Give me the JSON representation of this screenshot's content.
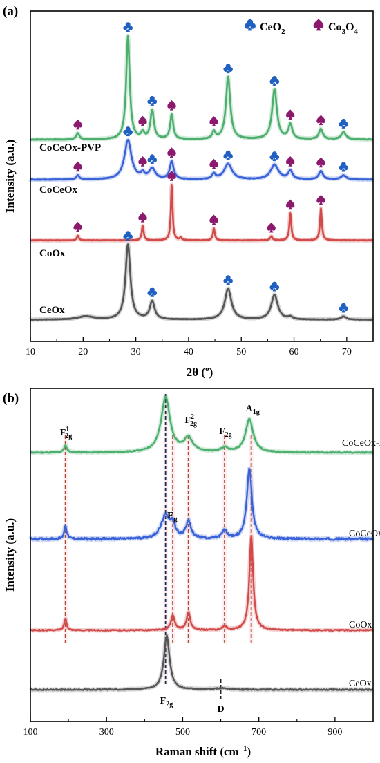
{
  "chart_data": [
    {
      "type": "line",
      "panel_label": "(a)",
      "xlabel": "2θ (°)",
      "xlabel_main": "2θ (",
      "xlabel_sup": "o",
      "xlabel_end": ")",
      "ylabel": "Intensity (a.u.)",
      "xlim": [
        10,
        75
      ],
      "xticks": [
        "10",
        "20",
        "30",
        "40",
        "50",
        "60",
        "70"
      ],
      "legend": [
        {
          "name": "CeO₂",
          "main": "CeO",
          "sub": "2",
          "color": "#2060c0",
          "marker": "club"
        },
        {
          "name": "Co₃O₄",
          "main": "Co",
          "sub1": "3",
          "mid": "O",
          "sub2": "4",
          "color": "#8b1a6e",
          "marker": "spade"
        }
      ],
      "series": [
        {
          "name": "CoCeOx-PVP",
          "color": "#4caf6e",
          "baseline": 0.02,
          "peaks": [
            {
              "x": 19.0,
              "h": 0.06,
              "w": 0.35,
              "marker": "spade"
            },
            {
              "x": 28.5,
              "h": 1.0,
              "w": 0.4,
              "marker": "club"
            },
            {
              "x": 31.3,
              "h": 0.06,
              "w": 0.35,
              "marker": "spade"
            },
            {
              "x": 33.1,
              "h": 0.28,
              "w": 0.4,
              "marker": "club"
            },
            {
              "x": 36.8,
              "h": 0.24,
              "w": 0.35,
              "marker": "spade"
            },
            {
              "x": 44.8,
              "h": 0.07,
              "w": 0.35,
              "marker": "spade"
            },
            {
              "x": 47.5,
              "h": 0.6,
              "w": 0.5,
              "marker": "club"
            },
            {
              "x": 56.3,
              "h": 0.48,
              "w": 0.55,
              "marker": "club"
            },
            {
              "x": 59.3,
              "h": 0.14,
              "w": 0.45,
              "marker": "spade"
            },
            {
              "x": 65.1,
              "h": 0.1,
              "w": 0.45,
              "marker": "spade"
            },
            {
              "x": 69.4,
              "h": 0.07,
              "w": 0.55,
              "marker": "club"
            }
          ]
        },
        {
          "name": "CoCeOx",
          "color": "#3a62d8",
          "baseline": 0.02,
          "peaks": [
            {
              "x": 19.0,
              "h": 0.04,
              "w": 0.35,
              "marker": "spade"
            },
            {
              "x": 28.5,
              "h": 0.38,
              "w": 0.8,
              "marker": "club"
            },
            {
              "x": 31.3,
              "h": 0.05,
              "w": 0.4,
              "marker": "spade"
            },
            {
              "x": 33.1,
              "h": 0.1,
              "w": 0.7,
              "marker": "club"
            },
            {
              "x": 36.8,
              "h": 0.17,
              "w": 0.45,
              "marker": "spade"
            },
            {
              "x": 44.8,
              "h": 0.05,
              "w": 0.4,
              "marker": "spade"
            },
            {
              "x": 47.5,
              "h": 0.15,
              "w": 0.9,
              "marker": "club"
            },
            {
              "x": 56.3,
              "h": 0.14,
              "w": 0.9,
              "marker": "club"
            },
            {
              "x": 59.3,
              "h": 0.08,
              "w": 0.5,
              "marker": "spade"
            },
            {
              "x": 65.1,
              "h": 0.08,
              "w": 0.5,
              "marker": "spade"
            },
            {
              "x": 69.4,
              "h": 0.04,
              "w": 0.6,
              "marker": "club"
            }
          ]
        },
        {
          "name": "CoOx",
          "color": "#d24b4b",
          "baseline": 0.02,
          "peaks": [
            {
              "x": 19.0,
              "h": 0.06,
              "w": 0.22,
              "marker": "spade"
            },
            {
              "x": 31.3,
              "h": 0.18,
              "w": 0.22,
              "marker": "spade"
            },
            {
              "x": 36.8,
              "h": 0.7,
              "w": 0.2,
              "marker": "spade"
            },
            {
              "x": 38.5,
              "h": 0.03,
              "w": 0.25,
              "marker": ""
            },
            {
              "x": 44.8,
              "h": 0.15,
              "w": 0.22,
              "marker": "spade"
            },
            {
              "x": 55.7,
              "h": 0.05,
              "w": 0.25,
              "marker": "spade"
            },
            {
              "x": 59.3,
              "h": 0.34,
              "w": 0.22,
              "marker": "spade"
            },
            {
              "x": 65.1,
              "h": 0.4,
              "w": 0.22,
              "marker": "spade"
            }
          ]
        },
        {
          "name": "CeOx",
          "color": "#555555",
          "baseline": 0.02,
          "peaks": [
            {
              "x": 20.5,
              "h": 0.04,
              "w": 1.8,
              "marker": ""
            },
            {
              "x": 28.5,
              "h": 0.92,
              "w": 0.55,
              "marker": "club"
            },
            {
              "x": 33.1,
              "h": 0.22,
              "w": 0.55,
              "marker": "club"
            },
            {
              "x": 47.5,
              "h": 0.38,
              "w": 0.75,
              "marker": "club"
            },
            {
              "x": 56.3,
              "h": 0.3,
              "w": 0.75,
              "marker": "club"
            },
            {
              "x": 59.3,
              "h": 0.03,
              "w": 0.5,
              "marker": ""
            },
            {
              "x": 69.4,
              "h": 0.04,
              "w": 0.6,
              "marker": "club"
            }
          ]
        }
      ]
    },
    {
      "type": "line",
      "panel_label": "(b)",
      "xlabel": "Raman shift (cm⁻¹)",
      "xlabel_main": "Raman shift (cm",
      "xlabel_sup": "−1",
      "xlabel_end": ")",
      "ylabel": "Intensity (a.u.)",
      "xlim": [
        100,
        1000
      ],
      "xticks": [
        "100",
        "300",
        "500",
        "700",
        "900"
      ],
      "series": [
        {
          "name": "CoCeOx-PVP",
          "color": "#4caf6e",
          "baseline": 0.0,
          "peaks": [
            {
              "x": 192,
              "h": 0.05,
              "w": 5
            },
            {
              "x": 455,
              "h": 0.4,
              "w": 14
            },
            {
              "x": 515,
              "h": 0.1,
              "w": 14
            },
            {
              "x": 610,
              "h": 0.03,
              "w": 12
            },
            {
              "x": 675,
              "h": 0.24,
              "w": 12
            }
          ]
        },
        {
          "name": "CoCeOx",
          "color": "#3a62d8",
          "baseline": 0.0,
          "peaks": [
            {
              "x": 192,
              "h": 0.12,
              "w": 4
            },
            {
              "x": 455,
              "h": 0.2,
              "w": 14
            },
            {
              "x": 474,
              "h": 0.1,
              "w": 8
            },
            {
              "x": 515,
              "h": 0.15,
              "w": 8
            },
            {
              "x": 610,
              "h": 0.07,
              "w": 8
            },
            {
              "x": 675,
              "h": 0.62,
              "w": 8
            }
          ]
        },
        {
          "name": "CoOx",
          "color": "#d24b4b",
          "baseline": 0.0,
          "peaks": [
            {
              "x": 192,
              "h": 0.08,
              "w": 4
            },
            {
              "x": 474,
              "h": 0.1,
              "w": 6
            },
            {
              "x": 515,
              "h": 0.12,
              "w": 6
            },
            {
              "x": 610,
              "h": 0.03,
              "w": 6
            },
            {
              "x": 680,
              "h": 0.65,
              "w": 6
            }
          ]
        },
        {
          "name": "CeOx",
          "color": "#555555",
          "baseline": 0.0,
          "peaks": [
            {
              "x": 458,
              "h": 0.4,
              "w": 9
            },
            {
              "x": 600,
              "h": 0.01,
              "w": 20
            }
          ]
        }
      ],
      "vlines": [
        {
          "x": 192,
          "color": "#b0482e"
        },
        {
          "x": 455,
          "color": "#1e2a4a"
        },
        {
          "x": 474,
          "color": "#b0482e"
        },
        {
          "x": 515,
          "color": "#b0482e"
        },
        {
          "x": 610,
          "color": "#b0482e"
        },
        {
          "x": 680,
          "color": "#b0482e"
        }
      ],
      "d_line": {
        "x": 600,
        "label": "D"
      },
      "peak_labels": [
        {
          "x": 192,
          "main": "F",
          "sup": "1",
          "sub": "2g",
          "row": "top"
        },
        {
          "x": 520,
          "main": "F",
          "sup": "2",
          "sub": "2g",
          "row": "top"
        },
        {
          "x": 610,
          "main": "F",
          "sup": "",
          "sub": "2g",
          "row": "top"
        },
        {
          "x": 680,
          "main": "A",
          "sup": "",
          "sub": "1g",
          "row": "top"
        },
        {
          "x": 474,
          "main": "E",
          "sup": "",
          "sub": "g",
          "row": "mid"
        },
        {
          "x": 455,
          "main": "F",
          "sup": "",
          "sub": "2g",
          "row": "bottom"
        }
      ]
    }
  ]
}
